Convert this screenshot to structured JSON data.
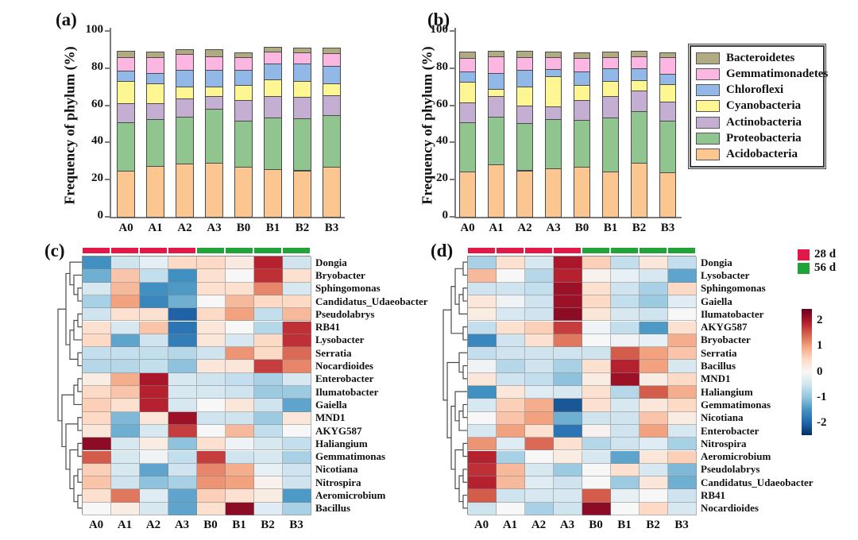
{
  "figure": {
    "panel_labels": {
      "a": "(a)",
      "b": "(b)",
      "c": "(c)",
      "d": "(d)"
    }
  },
  "phyla_legend": {
    "items": [
      {
        "label": "Bacteroidetes",
        "color": "#b0ab81"
      },
      {
        "label": "Gemmatimonadetes",
        "color": "#fbb7e2"
      },
      {
        "label": "Chloroflexi",
        "color": "#92b8e8"
      },
      {
        "label": "Cyanobacteria",
        "color": "#fdf693"
      },
      {
        "label": "Actinobacteria",
        "color": "#c4afd3"
      },
      {
        "label": "Proteobacteria",
        "color": "#90c590"
      },
      {
        "label": "Acidobacteria",
        "color": "#fcc690"
      }
    ]
  },
  "time_legend": {
    "items": [
      {
        "label": "28 d",
        "color": "#e11848"
      },
      {
        "label": "56 d",
        "color": "#22a339"
      }
    ]
  },
  "colorbar": {
    "tick_labels": [
      "2",
      "1",
      "0",
      "-1",
      "-2"
    ],
    "tick_values": [
      2,
      1,
      0,
      -1,
      -2
    ],
    "vmin": -2.45,
    "vmax": 2.45
  },
  "chart_data": [
    {
      "type": "bar",
      "id": "a",
      "title": "(a)",
      "ylabel": "Frequency of phylum (%)",
      "ylim": [
        0,
        100
      ],
      "yticks": [
        0,
        20,
        40,
        60,
        80,
        100
      ],
      "stacked": true,
      "legend_position": "right-of-panel-b",
      "categories": [
        "A0",
        "A1",
        "A2",
        "A3",
        "B0",
        "B1",
        "B2",
        "B3"
      ],
      "series": [
        {
          "name": "Acidobacteria",
          "color": "#fcc690",
          "values": [
            24.8,
            27.5,
            28.5,
            29.0,
            27.0,
            25.5,
            25.0,
            27.0
          ]
        },
        {
          "name": "Proteobacteria",
          "color": "#90c590",
          "values": [
            26.2,
            25.0,
            25.5,
            29.0,
            24.5,
            28.0,
            28.0,
            27.5
          ]
        },
        {
          "name": "Actinobacteria",
          "color": "#c4afd3",
          "values": [
            10.0,
            8.5,
            9.5,
            7.0,
            11.5,
            11.5,
            11.5,
            11.0
          ]
        },
        {
          "name": "Cyanobacteria",
          "color": "#fdf693",
          "values": [
            12.0,
            11.0,
            6.5,
            5.0,
            8.0,
            9.0,
            8.5,
            6.5
          ]
        },
        {
          "name": "Chloroflexi",
          "color": "#92b8e8",
          "values": [
            5.5,
            5.5,
            9.0,
            9.0,
            8.0,
            8.5,
            9.5,
            9.0
          ]
        },
        {
          "name": "Gemmatimonadetes",
          "color": "#fbb7e2",
          "values": [
            7.5,
            8.5,
            8.5,
            7.5,
            7.0,
            6.5,
            6.0,
            7.0
          ]
        },
        {
          "name": "Bacteroidetes",
          "color": "#b0ab81",
          "values": [
            3.5,
            3.0,
            2.5,
            3.5,
            2.5,
            2.5,
            2.5,
            3.0
          ]
        }
      ]
    },
    {
      "type": "bar",
      "id": "b",
      "title": "(b)",
      "ylabel": "Frequency of phylum (%)",
      "ylim": [
        0,
        100
      ],
      "yticks": [
        0,
        20,
        40,
        60,
        80,
        100
      ],
      "stacked": true,
      "categories": [
        "A0",
        "A1",
        "A2",
        "A3",
        "B0",
        "B1",
        "B2",
        "B3"
      ],
      "series": [
        {
          "name": "Acidobacteria",
          "color": "#fcc690",
          "values": [
            24.5,
            28.0,
            25.0,
            26.0,
            27.0,
            24.5,
            29.0,
            24.0
          ]
        },
        {
          "name": "Proteobacteria",
          "color": "#90c590",
          "values": [
            26.5,
            26.0,
            25.5,
            26.5,
            25.0,
            29.0,
            28.0,
            27.5
          ]
        },
        {
          "name": "Actinobacteria",
          "color": "#c4afd3",
          "values": [
            10.5,
            11.0,
            9.5,
            7.0,
            11.0,
            11.5,
            11.0,
            10.5
          ]
        },
        {
          "name": "Cyanobacteria",
          "color": "#fdf693",
          "values": [
            11.0,
            4.0,
            10.0,
            16.0,
            8.0,
            8.0,
            5.5,
            9.5
          ]
        },
        {
          "name": "Chloroflexi",
          "color": "#92b8e8",
          "values": [
            5.5,
            8.5,
            9.0,
            4.0,
            7.0,
            7.0,
            6.5,
            5.5
          ]
        },
        {
          "name": "Gemmatimonadetes",
          "color": "#fbb7e2",
          "values": [
            7.5,
            9.0,
            7.0,
            6.5,
            7.5,
            6.0,
            6.5,
            9.0
          ]
        },
        {
          "name": "Bacteroidetes",
          "color": "#b0ab81",
          "values": [
            3.5,
            3.0,
            3.5,
            3.0,
            3.0,
            3.0,
            3.0,
            2.5
          ]
        }
      ]
    },
    {
      "type": "heatmap",
      "id": "c",
      "title": "(c)",
      "cols": [
        "A0",
        "A1",
        "A2",
        "A3",
        "B0",
        "B1",
        "B2",
        "B3"
      ],
      "col_groups": [
        {
          "label": "28 d",
          "color": "#e11848",
          "cols": [
            "A0",
            "A1",
            "A2",
            "A3"
          ]
        },
        {
          "label": "56 d",
          "color": "#22a339",
          "cols": [
            "B0",
            "B1",
            "B2",
            "B3"
          ]
        }
      ],
      "rows": [
        "Dongia",
        "Bryobacter",
        "Sphingomonas",
        "Candidatus_Udaeobacter",
        "Pseudolabrys",
        "RB41",
        "Lysobacter",
        "Serratia",
        "Nocardioides",
        "Enterobacter",
        "Ilumatobacter",
        "Gaiella",
        "MND1",
        "AKYG587",
        "Haliangium",
        "Gemmatimonas",
        "Nicotiana",
        "Nitrospira",
        "Aeromicrobium",
        "Bacillus"
      ],
      "values": [
        [
          -1.5,
          -0.5,
          -0.25,
          0.5,
          0.5,
          0.25,
          1.9,
          -0.5
        ],
        [
          -1.2,
          0.7,
          -0.6,
          -1.5,
          0.4,
          0.0,
          1.8,
          0.4
        ],
        [
          -0.4,
          0.8,
          -1.5,
          -1.4,
          0.4,
          0.4,
          1.2,
          -0.4
        ],
        [
          -0.8,
          1.0,
          -1.6,
          -1.2,
          0.0,
          0.8,
          0.5,
          0.5
        ],
        [
          -0.5,
          0.4,
          0.4,
          -2.0,
          0.5,
          1.0,
          -0.6,
          0.8
        ],
        [
          0.4,
          -0.4,
          0.7,
          -1.8,
          0.3,
          0.0,
          -0.7,
          1.8
        ],
        [
          0.5,
          -1.3,
          -0.5,
          -1.7,
          0.3,
          -0.4,
          0.5,
          1.8
        ],
        [
          -0.6,
          -0.6,
          -0.6,
          -0.7,
          -0.5,
          1.1,
          0.5,
          1.4
        ],
        [
          -0.7,
          -0.7,
          -0.6,
          -1.0,
          0.3,
          0.3,
          1.7,
          1.2
        ],
        [
          0.2,
          0.9,
          2.0,
          -0.4,
          -0.5,
          -0.6,
          -0.8,
          -0.4
        ],
        [
          0.5,
          0.7,
          1.9,
          -0.4,
          -0.4,
          -0.5,
          -0.9,
          -0.9
        ],
        [
          0.6,
          0.4,
          1.9,
          -0.4,
          0.0,
          0.3,
          -0.5,
          -1.3
        ],
        [
          0.5,
          -1.1,
          0.3,
          2.1,
          -0.5,
          -0.5,
          -0.9,
          0.3
        ],
        [
          0.3,
          -1.2,
          -0.4,
          1.7,
          0.0,
          0.8,
          -0.6,
          0.0
        ],
        [
          2.2,
          -0.4,
          0.2,
          -1.0,
          0.4,
          -0.1,
          -0.4,
          -0.6
        ],
        [
          1.5,
          -0.4,
          -0.1,
          -0.6,
          1.7,
          -0.5,
          -0.4,
          -0.8
        ],
        [
          0.6,
          -0.4,
          -1.3,
          -0.5,
          1.2,
          0.9,
          -0.2,
          -0.5
        ],
        [
          0.7,
          -0.5,
          -1.0,
          -0.8,
          1.1,
          1.0,
          0.1,
          -0.5
        ],
        [
          0.4,
          1.3,
          -0.3,
          -1.3,
          0.6,
          0.4,
          0.2,
          -1.4
        ],
        [
          0.0,
          0.2,
          -0.4,
          -1.3,
          0.4,
          2.2,
          -0.3,
          -0.8
        ]
      ],
      "dendrogram": [
        [
          [
            0,
            [
              1,
              [
                2,
                3
              ]
            ]
          ],
          [
            [
              [
                4,
                5
              ],
              6
            ],
            [
              7,
              8
            ]
          ]
        ],
        [
          [
            [
              9,
              10
            ],
            11
          ],
          [
            [
              12,
              13
            ],
            [
              [
                14,
                15
              ],
              [
                [
                  16,
                  17
                ],
                [
                  18,
                  19
                ]
              ]
            ]
          ]
        ]
      ]
    },
    {
      "type": "heatmap",
      "id": "d",
      "title": "(d)",
      "cols": [
        "A0",
        "A1",
        "A2",
        "A3",
        "B0",
        "B1",
        "B2",
        "B3"
      ],
      "col_groups": [
        {
          "label": "28 d",
          "color": "#e11848",
          "cols": [
            "A0",
            "A1",
            "A2",
            "A3"
          ]
        },
        {
          "label": "56 d",
          "color": "#22a339",
          "cols": [
            "B0",
            "B1",
            "B2",
            "B3"
          ]
        }
      ],
      "rows": [
        "Dongia",
        "Lysobacter",
        "Sphingomonas",
        "Gaiella",
        "Ilumatobacter",
        "AKYG587",
        "Bryobacter",
        "Serratia",
        "Bacillus",
        "MND1",
        "Haliangium",
        "Gemmatimonas",
        "Nicotiana",
        "Enterobacter",
        "Nitrospira",
        "Aeromicrobium",
        "Pseudolabrys",
        "Candidatus_Udaeobacter",
        "RB41",
        "Nocardioides"
      ],
      "values": [
        [
          -0.8,
          0.4,
          -0.4,
          2.0,
          0.6,
          -0.6,
          0.3,
          -0.6
        ],
        [
          0.8,
          0.0,
          -0.7,
          1.9,
          0.1,
          -0.2,
          -0.4,
          -1.3
        ],
        [
          -0.5,
          -0.5,
          -0.6,
          2.1,
          0.4,
          -0.5,
          -0.8,
          0.5
        ],
        [
          0.3,
          -0.1,
          -0.5,
          2.1,
          0.5,
          -0.6,
          -0.9,
          -0.3
        ],
        [
          0.2,
          -0.4,
          -0.5,
          2.2,
          0.3,
          -0.4,
          -0.5,
          0.0
        ],
        [
          -0.6,
          0.4,
          0.6,
          1.7,
          -0.1,
          -0.6,
          -1.4,
          0.4
        ],
        [
          -1.6,
          -0.5,
          0.4,
          1.3,
          0.0,
          -0.1,
          -0.2,
          0.9
        ],
        [
          -0.6,
          -0.5,
          -0.5,
          -0.5,
          -0.5,
          1.5,
          1.0,
          0.7
        ],
        [
          -0.1,
          -0.7,
          -0.5,
          -0.8,
          0.4,
          1.9,
          1.0,
          -0.4
        ],
        [
          0.3,
          -0.5,
          -0.6,
          -1.0,
          0.2,
          2.1,
          0.2,
          0.5
        ],
        [
          -1.5,
          0.3,
          -0.3,
          -0.4,
          0.4,
          -0.7,
          1.5,
          0.9
        ],
        [
          -0.4,
          0.6,
          0.9,
          -2.1,
          0.4,
          -0.4,
          0.3,
          0.5
        ],
        [
          0.0,
          0.7,
          1.0,
          -1.2,
          -0.5,
          -0.5,
          0.7,
          0.2
        ],
        [
          -0.4,
          1.0,
          0.4,
          -1.8,
          0.1,
          -0.5,
          1.0,
          -0.4
        ],
        [
          1.1,
          -0.3,
          1.4,
          0.4,
          -0.7,
          -0.5,
          -0.3,
          -0.8
        ],
        [
          1.9,
          -0.8,
          0.0,
          0.2,
          -0.4,
          -1.3,
          0.3,
          0.6
        ],
        [
          1.8,
          0.8,
          -0.4,
          -0.9,
          0.0,
          0.4,
          -0.4,
          -1.1
        ],
        [
          1.9,
          0.8,
          -0.3,
          -0.5,
          0.0,
          -0.9,
          0.3,
          -1.2
        ],
        [
          1.5,
          -0.5,
          -0.4,
          -0.4,
          1.5,
          -0.2,
          0.0,
          -0.5
        ],
        [
          -0.5,
          0.0,
          -0.8,
          -0.5,
          2.2,
          0.0,
          0.5,
          -0.4
        ]
      ],
      "dendrogram": [
        [
          [
            [
              0,
              1
            ],
            [
              [
                2,
                3
              ],
              4
            ]
          ],
          [
            5,
            6
          ]
        ],
        [
          [
            7,
            [
              8,
              9
            ]
          ],
          [
            [
              10,
              [
                [
                  11,
                  12
                ],
                13
              ]
            ],
            [
              [
                14,
                15
              ],
              [
                [
                  16,
                  17
                ],
                [
                  18,
                  19
                ]
              ]
            ]
          ]
        ]
      ]
    }
  ]
}
